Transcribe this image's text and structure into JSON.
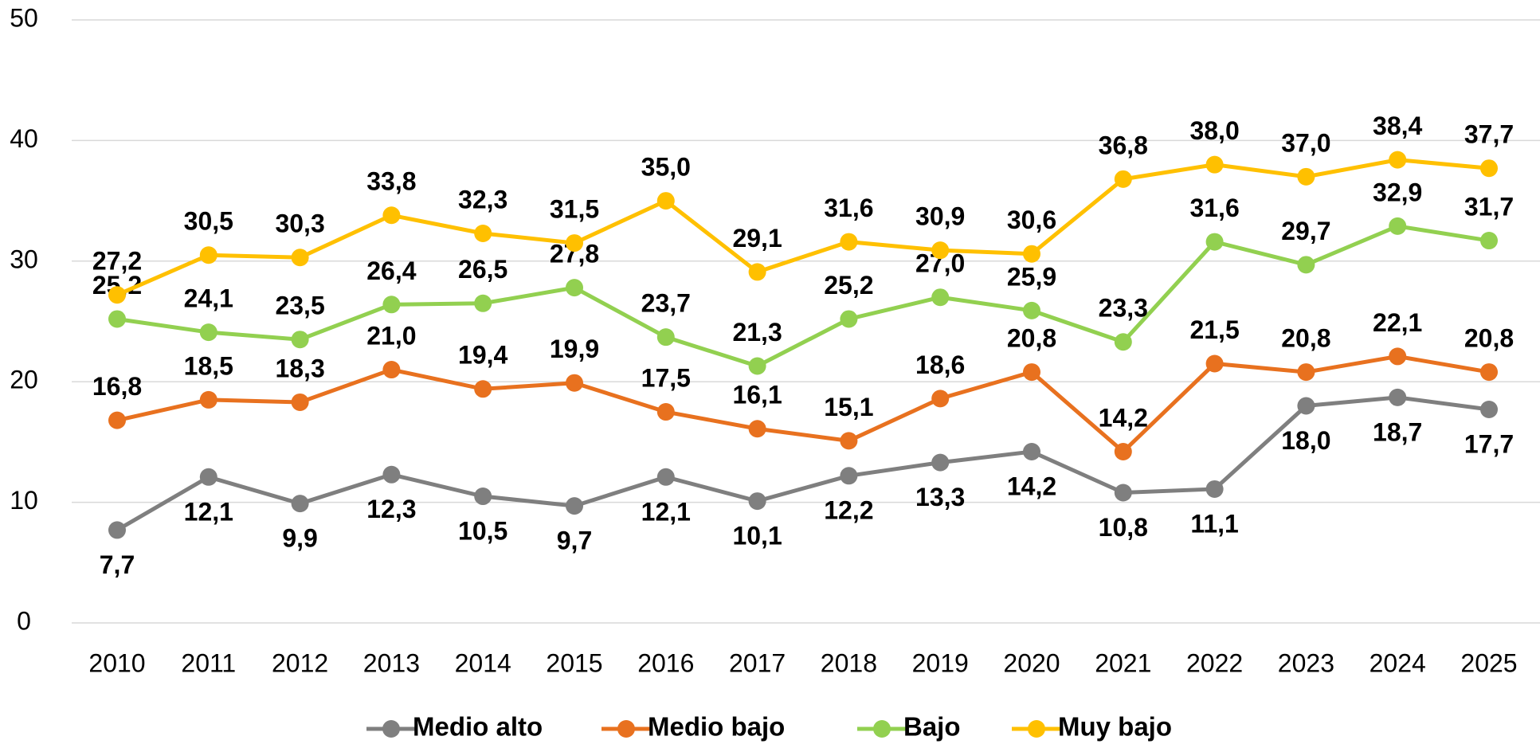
{
  "chart_data": {
    "type": "line",
    "categories": [
      "2010",
      "2011",
      "2012",
      "2013",
      "2014",
      "2015",
      "2016",
      "2017",
      "2018",
      "2019",
      "2020",
      "2021",
      "2022",
      "2023",
      "2024",
      "2025"
    ],
    "ylim": [
      0,
      50
    ],
    "yticks": [
      0,
      10,
      20,
      30,
      40,
      50
    ],
    "grid": true,
    "legend": "bottom",
    "series": [
      {
        "name": "Medio alto",
        "color": "#7f7f7f",
        "values": [
          7.7,
          12.1,
          9.9,
          12.3,
          10.5,
          9.7,
          12.1,
          10.1,
          12.2,
          13.3,
          14.2,
          10.8,
          11.1,
          18.0,
          18.7,
          17.7
        ],
        "value_labels": [
          "7,7",
          "12,1",
          "9,9",
          "12,3",
          "10,5",
          "9,7",
          "12,1",
          "10,1",
          "12,2",
          "13,3",
          "14,2",
          "10,8",
          "11,1",
          "18,0",
          "18,7",
          "17,7"
        ]
      },
      {
        "name": "Medio bajo",
        "color": "#e8711f",
        "values": [
          16.8,
          18.5,
          18.3,
          21.0,
          19.4,
          19.9,
          17.5,
          16.1,
          15.1,
          18.6,
          20.8,
          14.2,
          21.5,
          20.8,
          22.1,
          20.8
        ],
        "value_labels": [
          "16,8",
          "18,5",
          "18,3",
          "21,0",
          "19,4",
          "19,9",
          "17,5",
          "16,1",
          "15,1",
          "18,6",
          "20,8",
          "14,2",
          "21,5",
          "20,8",
          "22,1",
          "20,8"
        ]
      },
      {
        "name": "Bajo",
        "color": "#92d050",
        "values": [
          25.2,
          24.1,
          23.5,
          26.4,
          26.5,
          27.8,
          23.7,
          21.3,
          25.2,
          27.0,
          25.9,
          23.3,
          31.6,
          29.7,
          32.9,
          31.7
        ],
        "value_labels": [
          "25,2",
          "24,1",
          "23,5",
          "26,4",
          "26,5",
          "27,8",
          "23,7",
          "21,3",
          "25,2",
          "27,0",
          "25,9",
          "23,3",
          "31,6",
          "29,7",
          "32,9",
          "31,7"
        ]
      },
      {
        "name": "Muy bajo",
        "color": "#ffc000",
        "values": [
          27.2,
          30.5,
          30.3,
          33.8,
          32.3,
          31.5,
          35.0,
          29.1,
          31.6,
          30.9,
          30.6,
          36.8,
          38.0,
          37.0,
          38.4,
          37.7
        ],
        "value_labels": [
          "27,2",
          "30,5",
          "30,3",
          "33,8",
          "32,3",
          "31,5",
          "35,0",
          "29,1",
          "31,6",
          "30,9",
          "30,6",
          "36,8",
          "38,0",
          "37,0",
          "38,4",
          "37,7"
        ]
      }
    ]
  }
}
